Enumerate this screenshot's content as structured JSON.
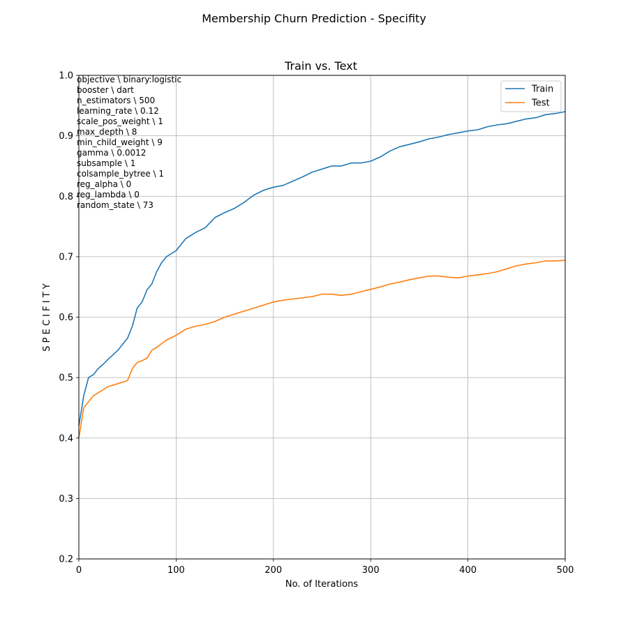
{
  "figure": {
    "suptitle": "Membership Churn Prediction - Specifity"
  },
  "chart_data": {
    "type": "line",
    "title": "Train vs. Text",
    "xlabel": "No. of  Iterations",
    "ylabel": "S P E C I F I T Y",
    "xlim": [
      0,
      500
    ],
    "ylim": [
      0.2,
      1.0
    ],
    "xticks": [
      0,
      100,
      200,
      300,
      400,
      500
    ],
    "yticks": [
      0.2,
      0.3,
      0.4,
      0.5,
      0.6,
      0.7,
      0.8,
      0.9,
      1.0
    ],
    "x_tick_labels": [
      "0",
      "100",
      "200",
      "300",
      "400",
      "500"
    ],
    "y_tick_labels": [
      "0.2",
      "0.3",
      "0.4",
      "0.5",
      "0.6",
      "0.7",
      "0.8",
      "0.9",
      "1.0"
    ],
    "grid": true,
    "legend_position": "top-right",
    "x": [
      0,
      5,
      10,
      15,
      20,
      25,
      30,
      40,
      50,
      55,
      60,
      65,
      70,
      75,
      80,
      85,
      90,
      95,
      100,
      110,
      120,
      130,
      140,
      150,
      160,
      170,
      180,
      190,
      200,
      210,
      220,
      230,
      240,
      250,
      260,
      270,
      280,
      290,
      300,
      310,
      320,
      330,
      340,
      350,
      360,
      370,
      380,
      390,
      400,
      410,
      420,
      430,
      440,
      450,
      460,
      470,
      480,
      490,
      500
    ],
    "series": [
      {
        "name": "Train",
        "color": "#1f77b4",
        "values": [
          0.42,
          0.47,
          0.5,
          0.505,
          0.515,
          0.522,
          0.53,
          0.545,
          0.565,
          0.585,
          0.615,
          0.625,
          0.645,
          0.655,
          0.675,
          0.69,
          0.7,
          0.705,
          0.71,
          0.73,
          0.74,
          0.748,
          0.765,
          0.773,
          0.78,
          0.79,
          0.802,
          0.81,
          0.815,
          0.818,
          0.825,
          0.832,
          0.84,
          0.845,
          0.85,
          0.85,
          0.855,
          0.855,
          0.858,
          0.865,
          0.875,
          0.882,
          0.886,
          0.89,
          0.895,
          0.898,
          0.902,
          0.905,
          0.908,
          0.91,
          0.915,
          0.918,
          0.92,
          0.924,
          0.928,
          0.93,
          0.935,
          0.937,
          0.94
        ]
      },
      {
        "name": "Test",
        "color": "#ff7f0e",
        "values": [
          0.4,
          0.45,
          0.46,
          0.47,
          0.475,
          0.48,
          0.485,
          0.49,
          0.495,
          0.515,
          0.525,
          0.528,
          0.532,
          0.545,
          0.55,
          0.556,
          0.562,
          0.566,
          0.57,
          0.58,
          0.585,
          0.588,
          0.593,
          0.6,
          0.605,
          0.61,
          0.615,
          0.62,
          0.625,
          0.628,
          0.63,
          0.632,
          0.634,
          0.638,
          0.638,
          0.636,
          0.638,
          0.642,
          0.646,
          0.65,
          0.655,
          0.658,
          0.662,
          0.665,
          0.668,
          0.668,
          0.666,
          0.665,
          0.668,
          0.67,
          0.672,
          0.675,
          0.68,
          0.685,
          0.688,
          0.69,
          0.693,
          0.693,
          0.694
        ]
      }
    ],
    "annotation_lines": [
      "objective \\ binary:logistic",
      "booster \\ dart",
      "n_estimators \\ 500",
      "learning_rate \\ 0.12",
      "scale_pos_weight \\ 1",
      "max_depth \\ 8",
      "min_child_weight \\ 9",
      "gamma \\ 0.0012",
      "subsample \\ 1",
      "colsample_bytree \\ 1",
      "reg_alpha \\ 0",
      "reg_lambda \\ 0",
      "random_state \\ 73"
    ]
  }
}
